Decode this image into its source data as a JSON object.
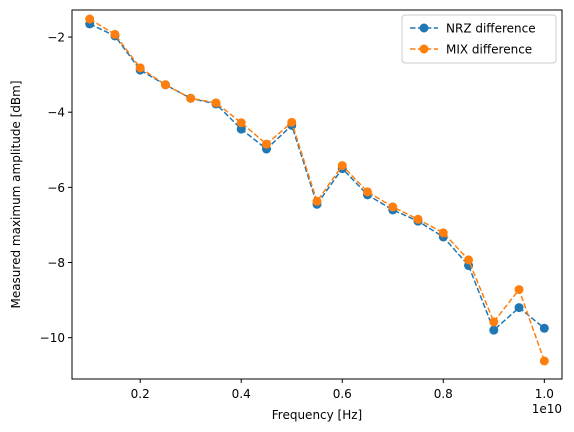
{
  "chart_data": {
    "type": "line",
    "xlabel": "Frequency [Hz]",
    "ylabel": "Measured maximum amplitude [dBm]",
    "x_offset_text": "1e10",
    "xlim": [
      650000000,
      10350000000
    ],
    "ylim": [
      -11.1,
      -1.28
    ],
    "x_ticks": [
      2000000000,
      4000000000,
      6000000000,
      8000000000,
      10000000000
    ],
    "x_tick_labels": [
      "0.2",
      "0.4",
      "0.6",
      "0.8",
      "1.0"
    ],
    "y_ticks": [
      -10,
      -8,
      -6,
      -4,
      -2
    ],
    "y_tick_labels": [
      "−10",
      "−8",
      "−6",
      "−4",
      "−2"
    ],
    "grid": false,
    "legend_position": "upper-right",
    "x": [
      1000000000,
      1500000000,
      2000000000,
      2500000000,
      3000000000,
      3500000000,
      4000000000,
      4500000000,
      5000000000,
      5500000000,
      6000000000,
      6500000000,
      7000000000,
      7500000000,
      8000000000,
      8500000000,
      9000000000,
      9500000000,
      10000000000
    ],
    "series": [
      {
        "name": "NRZ difference",
        "color": "#1f77b4",
        "line_style": "dashed",
        "marker": "circle",
        "values": [
          -1.65,
          -1.97,
          -2.88,
          -3.27,
          -3.63,
          -3.78,
          -4.45,
          -4.98,
          -4.35,
          -6.45,
          -5.5,
          -6.2,
          -6.6,
          -6.9,
          -7.32,
          -8.08,
          -9.8,
          -9.2,
          -9.75
        ]
      },
      {
        "name": "MIX difference",
        "color": "#ff7f0e",
        "line_style": "dashed",
        "marker": "circle",
        "values": [
          -1.52,
          -1.93,
          -2.82,
          -3.27,
          -3.63,
          -3.75,
          -4.28,
          -4.85,
          -4.27,
          -6.37,
          -5.42,
          -6.12,
          -6.52,
          -6.85,
          -7.21,
          -7.93,
          -9.58,
          -8.72,
          -10.62
        ]
      }
    ]
  }
}
